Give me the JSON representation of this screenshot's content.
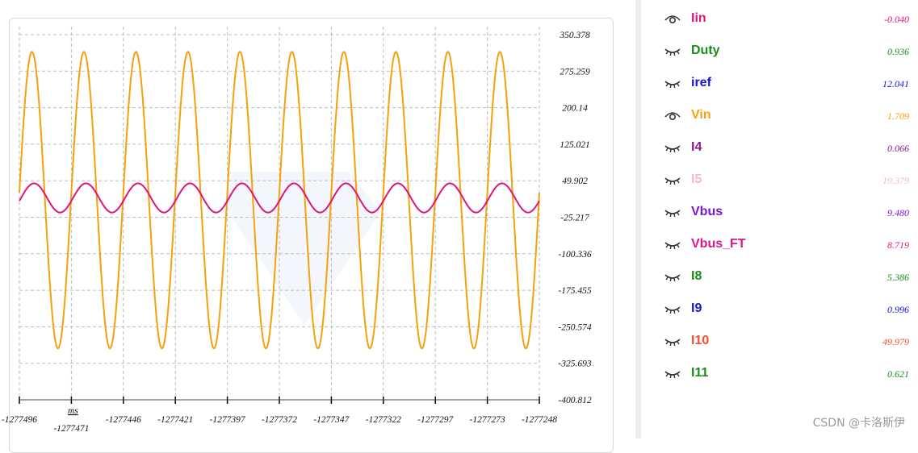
{
  "chart_data": {
    "type": "line",
    "x_unit": "ms",
    "x_ticks": [
      "-1277496",
      "-1277471",
      "-1277446",
      "-1277421",
      "-1277397",
      "-1277372",
      "-1277347",
      "-1277322",
      "-1277297",
      "-1277273",
      "-1277248"
    ],
    "y_ticks": [
      "350.378",
      "275.259",
      "200.14",
      "125.021",
      "49.902",
      "-25.217",
      "-100.336",
      "-175.455",
      "-250.574",
      "-325.693",
      "-400.812"
    ],
    "xlim": [
      -1277496,
      -1277248
    ],
    "ylim": [
      -400.812,
      350.378
    ],
    "grid": true,
    "series": [
      {
        "name": "Vin",
        "color": "#f5a20a",
        "waveform": "sine",
        "amplitude": 305,
        "offset": 10,
        "period": 24.8,
        "x_start": -1277496,
        "x_end": -1277248,
        "first_peak_x": -1277490
      },
      {
        "name": "Iin",
        "color": "#e0147a",
        "waveform": "sine",
        "amplitude": 30,
        "offset": 14.5,
        "period": 24.8,
        "x_start": -1277496,
        "x_end": -1277248,
        "first_peak_x": -1277489
      }
    ]
  },
  "legend": [
    {
      "name": "Iin",
      "value": "-0.040",
      "color": "#e0147a",
      "visible": true
    },
    {
      "name": "Duty",
      "value": "0.936",
      "color": "#1a8c1a",
      "visible": false
    },
    {
      "name": "iref",
      "value": "12.041",
      "color": "#1414d2",
      "visible": false
    },
    {
      "name": "Vin",
      "value": "1.709",
      "color": "#f5a20a",
      "visible": true
    },
    {
      "name": "I4",
      "value": "0.066",
      "color": "#8b1a8b",
      "visible": false
    },
    {
      "name": "I5",
      "value": "19.379",
      "color": "#f7b8c8",
      "visible": false
    },
    {
      "name": "Vbus",
      "value": "9.480",
      "color": "#7a14d2",
      "visible": false
    },
    {
      "name": "Vbus_FT",
      "value": "8.719",
      "color": "#e0148c",
      "visible": false
    },
    {
      "name": "I8",
      "value": "5.386",
      "color": "#1a8c1a",
      "visible": false
    },
    {
      "name": "I9",
      "value": "0.996",
      "color": "#1414d2",
      "visible": false
    },
    {
      "name": "I10",
      "value": "49.979",
      "color": "#f0502a",
      "visible": false
    },
    {
      "name": "I11",
      "value": "0.621",
      "color": "#1a8c1a",
      "visible": false
    }
  ],
  "watermark": "CSDN @卡洛斯伊"
}
